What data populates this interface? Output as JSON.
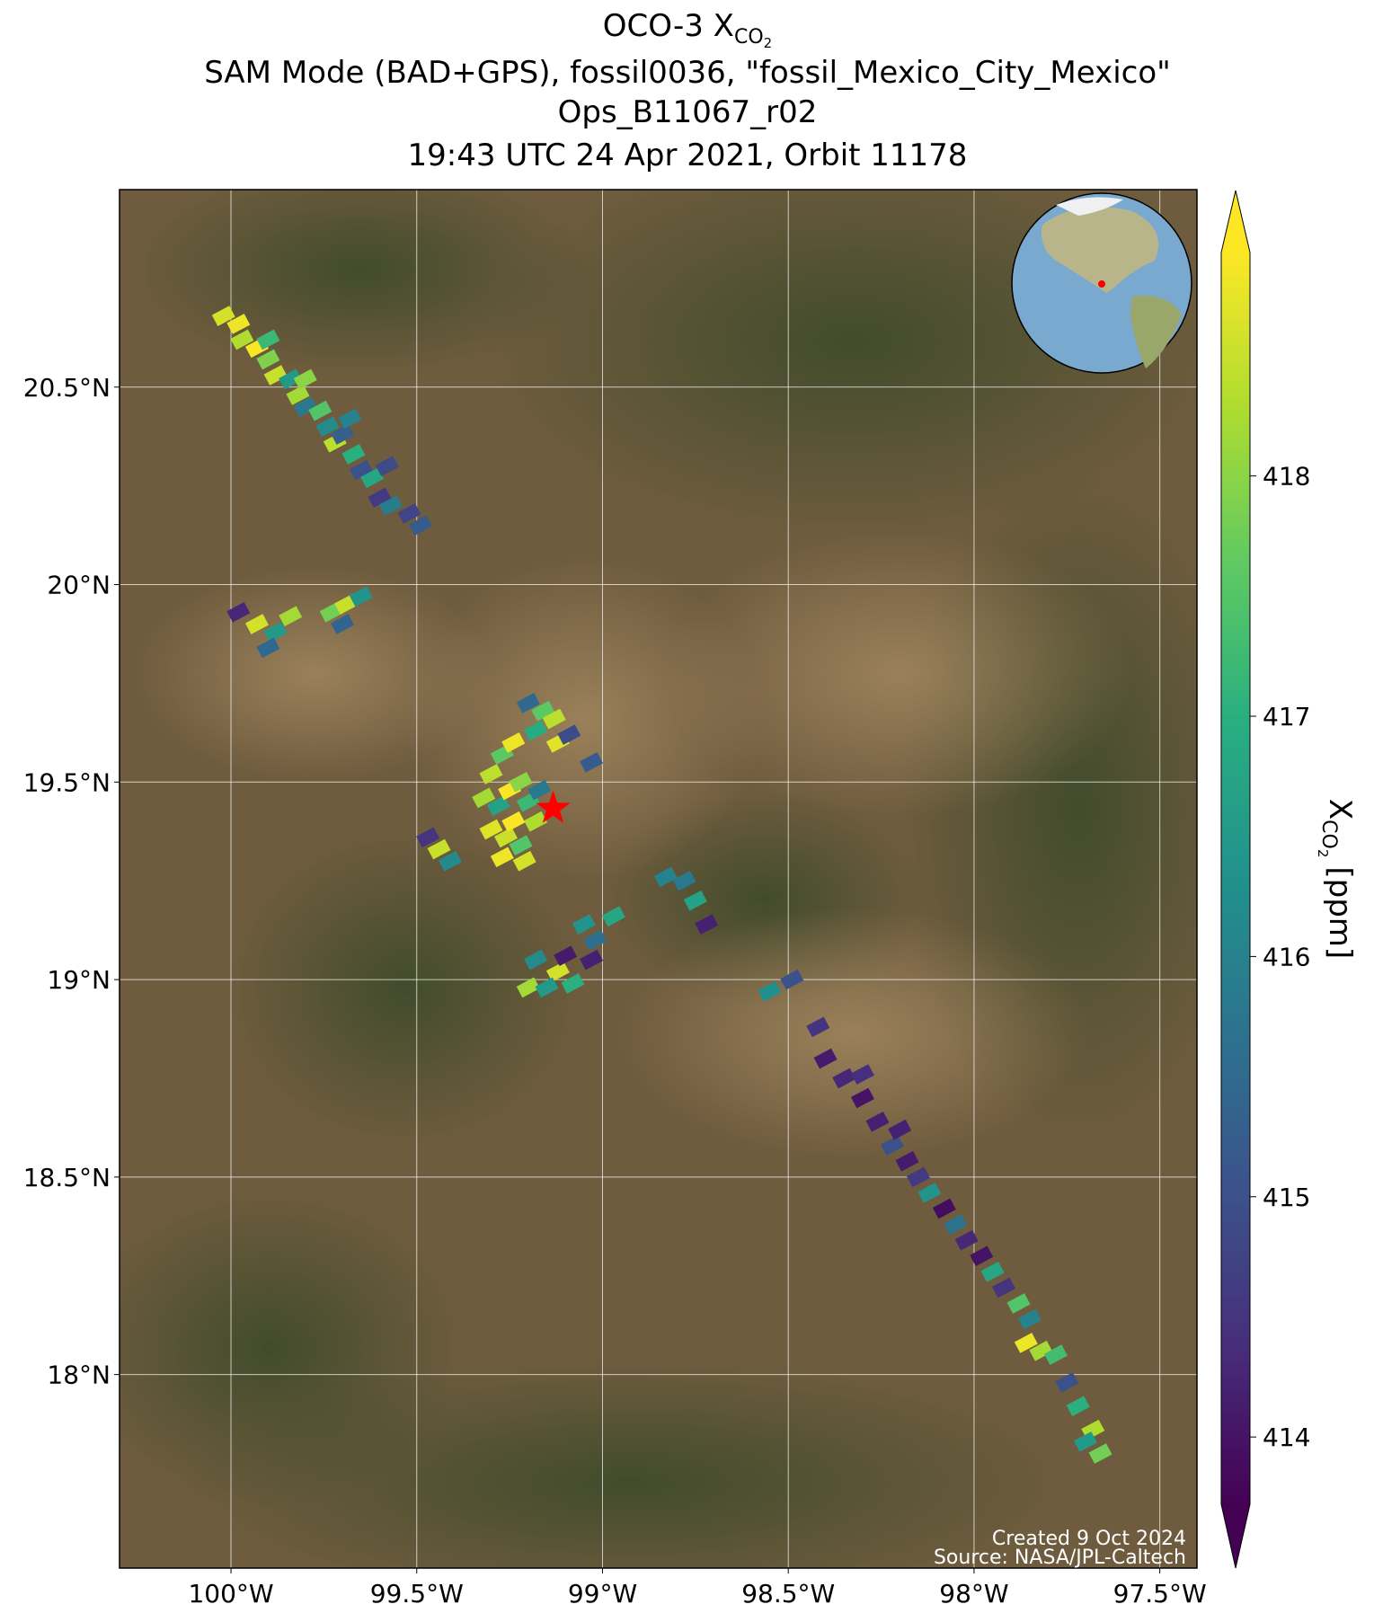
{
  "chart_data": {
    "type": "map-scatter",
    "title": {
      "prefix": "OCO-3 X",
      "sub": "CO",
      "subsub": "2"
    },
    "subtitle": [
      "SAM Mode (BAD+GPS), fossil0036, \"fossil_Mexico_City_Mexico\"",
      "Ops_B11067_r02",
      "19:43 UTC 24 Apr 2021, Orbit 11178"
    ],
    "xlim": [
      -100.3,
      -97.4
    ],
    "ylim": [
      17.51,
      21.0
    ],
    "xticks": [
      {
        "value": -100,
        "label": "100°W"
      },
      {
        "value": -99.5,
        "label": "99.5°W"
      },
      {
        "value": -99,
        "label": "99°W"
      },
      {
        "value": -98.5,
        "label": "98.5°W"
      },
      {
        "value": -98,
        "label": "98°W"
      },
      {
        "value": -97.5,
        "label": "97.5°W"
      }
    ],
    "yticks": [
      {
        "value": 18,
        "label": "18°N"
      },
      {
        "value": 18.5,
        "label": "18.5°N"
      },
      {
        "value": 19,
        "label": "19°N"
      },
      {
        "value": 19.5,
        "label": "19.5°N"
      },
      {
        "value": 20,
        "label": "20°N"
      },
      {
        "value": 20.5,
        "label": "20.5°N"
      }
    ],
    "grid": true,
    "colormap": "viridis",
    "clim": [
      413.72,
      418.93
    ],
    "cticks": [
      414,
      415,
      416,
      417,
      418
    ],
    "colorbar_label": {
      "prefix": "X",
      "sub": "CO",
      "subsub": "2",
      "suffix": "[ppm]"
    },
    "target": {
      "lon": -99.133,
      "lat": 19.433,
      "color": "#ff0000"
    },
    "credits": [
      "Created 9 Oct 2024",
      "Source: NASA/JPL-Caltech"
    ],
    "lon": [
      -100.02,
      -99.98,
      -99.97,
      -99.93,
      -99.9,
      -99.88,
      -99.84,
      -99.82,
      -99.8,
      -99.76,
      -99.74,
      -99.72,
      -99.7,
      -99.67,
      -99.65,
      -99.62,
      -99.6,
      -99.57,
      -99.52,
      -99.49,
      -99.9,
      -99.8,
      -99.68,
      -99.58,
      -99.98,
      -99.93,
      -99.88,
      -99.9,
      -99.84,
      -99.73,
      -99.69,
      -99.65,
      -99.7,
      -99.3,
      -99.27,
      -99.24,
      -99.32,
      -99.28,
      -99.25,
      -99.22,
      -99.2,
      -99.3,
      -99.26,
      -99.22,
      -99.27,
      -99.21,
      -99.18,
      -99.17,
      -99.24,
      -99.2,
      -99.16,
      -99.13,
      -99.18,
      -99.12,
      -99.09,
      -99.03,
      -99.47,
      -99.44,
      -99.41,
      -98.78,
      -98.75,
      -98.72,
      -98.83,
      -99.05,
      -99.02,
      -98.97,
      -99.18,
      -99.12,
      -99.08,
      -99.2,
      -99.03,
      -99.1,
      -99.15,
      -98.55,
      -98.49,
      -98.42,
      -98.4,
      -98.35,
      -98.3,
      -98.26,
      -98.22,
      -98.18,
      -98.15,
      -98.12,
      -98.08,
      -98.05,
      -98.02,
      -97.98,
      -97.95,
      -97.92,
      -97.88,
      -97.85,
      -97.86,
      -97.82,
      -97.78,
      -97.75,
      -97.72,
      -97.68,
      -97.7,
      -97.66,
      -98.3,
      -98.2
    ],
    "lat": [
      20.68,
      20.66,
      20.62,
      20.6,
      20.57,
      20.53,
      20.52,
      20.48,
      20.45,
      20.44,
      20.4,
      20.36,
      20.38,
      20.33,
      20.29,
      20.27,
      20.22,
      20.2,
      20.18,
      20.15,
      20.62,
      20.52,
      20.42,
      20.3,
      19.93,
      19.9,
      19.88,
      19.84,
      19.92,
      19.93,
      19.95,
      19.97,
      19.9,
      19.52,
      19.57,
      19.6,
      19.46,
      19.44,
      19.48,
      19.5,
      19.45,
      19.38,
      19.36,
      19.34,
      19.31,
      19.3,
      19.4,
      19.48,
      19.4,
      19.7,
      19.68,
      19.66,
      19.63,
      19.6,
      19.62,
      19.55,
      19.36,
      19.33,
      19.3,
      19.25,
      19.2,
      19.14,
      19.26,
      19.14,
      19.1,
      19.16,
      19.05,
      19.02,
      18.99,
      18.98,
      19.05,
      19.06,
      18.98,
      18.97,
      19.0,
      18.88,
      18.8,
      18.75,
      18.7,
      18.64,
      18.58,
      18.54,
      18.5,
      18.46,
      18.42,
      18.38,
      18.34,
      18.3,
      18.26,
      18.22,
      18.18,
      18.14,
      18.08,
      18.06,
      18.05,
      17.98,
      17.92,
      17.86,
      17.83,
      17.8,
      18.76,
      18.62
    ],
    "xco2": [
      418.6,
      418.8,
      418.3,
      418.9,
      417.9,
      418.5,
      416.5,
      418.2,
      415.8,
      417.5,
      416.2,
      418.4,
      415.3,
      417.0,
      415.0,
      416.8,
      414.6,
      415.9,
      414.8,
      415.2,
      417.2,
      418.0,
      416.0,
      414.9,
      414.3,
      418.6,
      416.5,
      415.5,
      418.2,
      417.8,
      418.5,
      416.4,
      415.4,
      418.4,
      417.6,
      418.8,
      418.2,
      416.7,
      418.9,
      418.0,
      417.2,
      418.7,
      418.5,
      417.5,
      418.8,
      418.6,
      418.3,
      415.8,
      418.9,
      415.5,
      417.6,
      418.4,
      416.9,
      418.7,
      414.9,
      415.2,
      414.5,
      418.5,
      416.2,
      415.8,
      416.7,
      414.2,
      416.0,
      416.4,
      415.6,
      416.8,
      416.2,
      418.6,
      417.0,
      418.2,
      414.2,
      414.1,
      416.5,
      416.3,
      415.0,
      414.5,
      414.1,
      414.3,
      414.0,
      414.2,
      415.0,
      414.1,
      414.6,
      416.4,
      413.9,
      415.7,
      414.3,
      414.0,
      416.8,
      414.5,
      417.5,
      416.0,
      418.8,
      418.2,
      417.3,
      415.0,
      417.0,
      418.3,
      416.5,
      417.8,
      414.4,
      414.2
    ]
  }
}
